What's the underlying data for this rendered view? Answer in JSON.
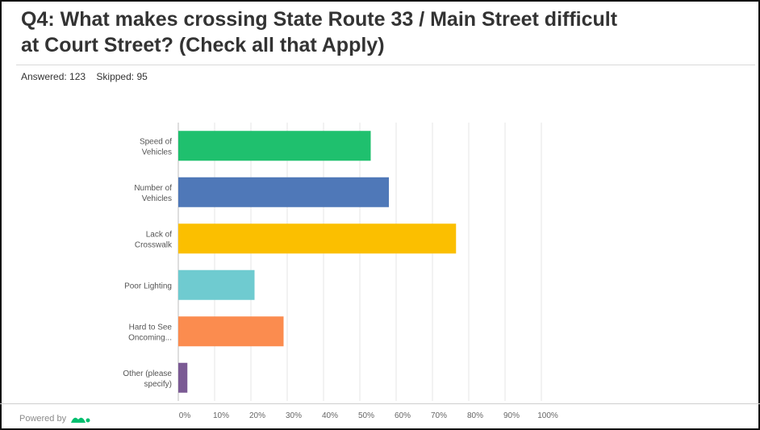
{
  "question": {
    "title_line1": "Q4: What makes crossing State Route 33 / Main Street difficult",
    "title_line2": "at Court Street? (Check all that Apply)",
    "answered": "Answered: 123",
    "skipped": "Skipped: 95"
  },
  "footer": {
    "powered_by": "Powered by"
  },
  "chart_data": {
    "type": "bar",
    "orientation": "horizontal",
    "categories": [
      [
        "Speed of",
        "Vehicles"
      ],
      [
        "Number of",
        "Vehicles"
      ],
      [
        "Lack of",
        "Crosswalk"
      ],
      [
        "Poor Lighting"
      ],
      [
        "Hard to See",
        "Oncoming..."
      ],
      [
        "Other (please",
        "specify)"
      ]
    ],
    "values": [
      53,
      58,
      76.5,
      21,
      29,
      2.5
    ],
    "colors": [
      "#1fc06e",
      "#4f78b8",
      "#fbbf00",
      "#6fcbd0",
      "#fb8c4f",
      "#7b5a94"
    ],
    "xlim": [
      0,
      100
    ],
    "x_ticks": [
      "0%",
      "10%",
      "20%",
      "30%",
      "40%",
      "50%",
      "60%",
      "70%",
      "80%",
      "90%",
      "100%"
    ],
    "grid": true,
    "legend": "none"
  }
}
